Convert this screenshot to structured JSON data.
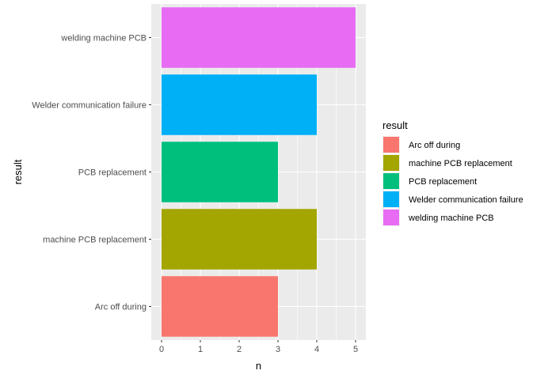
{
  "chart_data": {
    "type": "bar",
    "orientation": "horizontal",
    "categories": [
      "Arc off during",
      "machine PCB replacement",
      "PCB replacement",
      "Welder communication failure",
      "welding machine PCB"
    ],
    "values": [
      3,
      4,
      3,
      4,
      5
    ],
    "colors": [
      "#F8766D",
      "#A3A500",
      "#00BF7D",
      "#00B0F6",
      "#E76BF3"
    ],
    "xlabel": "n",
    "ylabel": "result",
    "xlim": [
      0,
      5.2
    ],
    "x_ticks": [
      "0",
      "1",
      "2",
      "3",
      "4",
      "5"
    ],
    "grid": true,
    "panel_background": "#EBEBEB",
    "legend": {
      "title": "result",
      "position": "right",
      "items": [
        "Arc off during",
        "machine PCB replacement",
        "PCB replacement",
        "Welder communication failure",
        "welding machine PCB"
      ]
    }
  }
}
